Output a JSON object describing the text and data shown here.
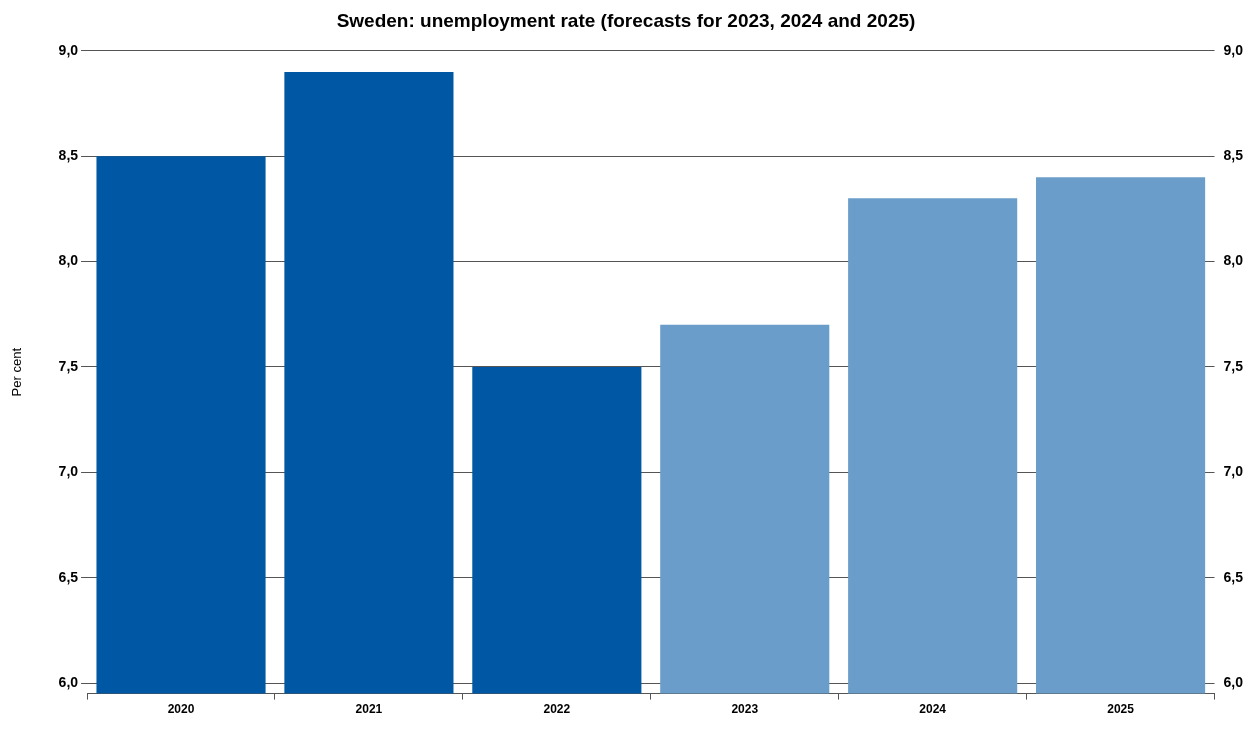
{
  "chart_data": {
    "type": "bar",
    "title": "Sweden: unemployment rate (forecasts for 2023, 2024 and 2025)",
    "ylabel": "Per cent",
    "categories": [
      "2020",
      "2021",
      "2022",
      "2023",
      "2024",
      "2025"
    ],
    "values": [
      8.5,
      8.9,
      7.5,
      7.7,
      8.3,
      8.4
    ],
    "colors": [
      "#0057a3",
      "#0057a3",
      "#0057a3",
      "#6a9dca",
      "#6a9dca",
      "#6a9dca"
    ],
    "ylim": [
      5.95,
      9.0
    ],
    "yticks": [
      {
        "value": 6,
        "label": "6,0"
      },
      {
        "value": 6.5,
        "label": "6,5"
      },
      {
        "value": 7,
        "label": "7,0"
      },
      {
        "value": 7.5,
        "label": "7,5"
      },
      {
        "value": 8,
        "label": "8,0"
      },
      {
        "value": 8.5,
        "label": "8,5"
      },
      {
        "value": 9,
        "label": "9,0"
      }
    ],
    "y2lim": [
      5.95,
      9.0
    ],
    "y2ticks": [
      {
        "value": 6,
        "label": "6,0"
      },
      {
        "value": 6.5,
        "label": "6,5"
      },
      {
        "value": 7,
        "label": "7,0"
      },
      {
        "value": 7.5,
        "label": "7,5"
      },
      {
        "value": 8,
        "label": "8,0"
      },
      {
        "value": 8.5,
        "label": "8,5"
      },
      {
        "value": 9,
        "label": "9,0"
      }
    ],
    "grid": "y",
    "legend": false
  }
}
